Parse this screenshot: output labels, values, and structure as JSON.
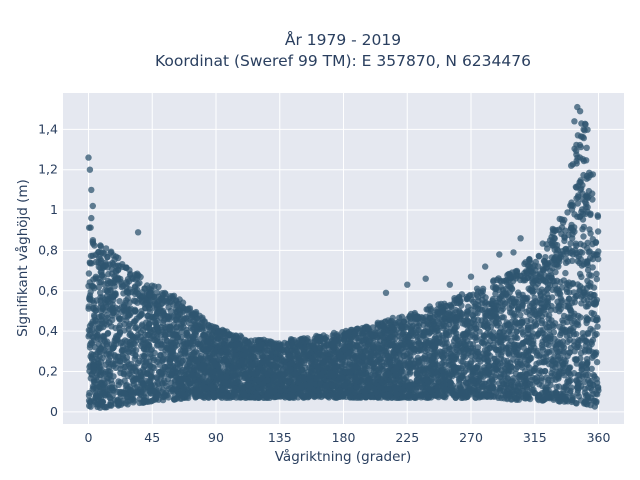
{
  "chart_data": {
    "type": "scatter",
    "title_line1": "År 1979 - 2019",
    "title_line2": "Koordinat (Sweref 99 TM): E 357870, N 6234476",
    "xlabel": "Vågriktning (grader)",
    "ylabel": "Signifikant våghöjd (m)",
    "xlim": [
      -18,
      378
    ],
    "ylim": [
      -0.06,
      1.58
    ],
    "x_ticks": [
      0,
      45,
      90,
      135,
      180,
      225,
      270,
      315,
      360
    ],
    "x_tick_labels": [
      "0",
      "45",
      "90",
      "135",
      "180",
      "225",
      "270",
      "315",
      "360"
    ],
    "y_ticks": [
      0,
      0.2,
      0.4,
      0.6,
      0.8,
      1.0,
      1.2,
      1.4
    ],
    "y_tick_labels": [
      "0",
      "0,2",
      "0,4",
      "0,6",
      "0,8",
      "1",
      "1,2",
      "1,4"
    ],
    "grid": true,
    "legend": "none",
    "colors": {
      "marker": "#2f5670",
      "plot_bg": "#e5e8f0",
      "grid": "#ffffff",
      "text": "#2a3f5f"
    },
    "envelope": {
      "description": "Upper envelope of wave height by direction (data units)",
      "x": [
        0,
        10,
        20,
        30,
        45,
        60,
        75,
        90,
        105,
        120,
        135,
        150,
        165,
        180,
        195,
        210,
        225,
        240,
        255,
        270,
        285,
        300,
        315,
        325,
        335,
        340,
        345,
        350,
        355,
        360
      ],
      "y_max": [
        0.95,
        0.82,
        0.78,
        0.72,
        0.64,
        0.58,
        0.5,
        0.42,
        0.38,
        0.36,
        0.35,
        0.37,
        0.38,
        0.4,
        0.42,
        0.46,
        0.48,
        0.52,
        0.56,
        0.6,
        0.65,
        0.7,
        0.78,
        0.88,
        1.0,
        1.2,
        1.4,
        1.48,
        1.3,
        0.95
      ],
      "y_min": [
        0.02,
        0.02,
        0.03,
        0.04,
        0.05,
        0.06,
        0.07,
        0.07,
        0.07,
        0.07,
        0.07,
        0.07,
        0.07,
        0.07,
        0.07,
        0.07,
        0.07,
        0.07,
        0.07,
        0.07,
        0.07,
        0.06,
        0.06,
        0.05,
        0.05,
        0.05,
        0.04,
        0.04,
        0.03,
        0.02
      ]
    },
    "outliers": [
      {
        "x": 0,
        "y": 1.26
      },
      {
        "x": 1,
        "y": 1.2
      },
      {
        "x": 2,
        "y": 1.1
      },
      {
        "x": 3,
        "y": 1.02
      },
      {
        "x": 35,
        "y": 0.89
      },
      {
        "x": 2,
        "y": 0.96
      },
      {
        "x": 270,
        "y": 0.67
      },
      {
        "x": 280,
        "y": 0.72
      },
      {
        "x": 290,
        "y": 0.78
      },
      {
        "x": 300,
        "y": 0.79
      },
      {
        "x": 305,
        "y": 0.86
      },
      {
        "x": 225,
        "y": 0.63
      },
      {
        "x": 210,
        "y": 0.59
      },
      {
        "x": 238,
        "y": 0.66
      },
      {
        "x": 255,
        "y": 0.63
      },
      {
        "x": 345,
        "y": 1.51
      },
      {
        "x": 347,
        "y": 1.49
      },
      {
        "x": 343,
        "y": 1.44
      }
    ],
    "approx_point_count": 6000
  }
}
